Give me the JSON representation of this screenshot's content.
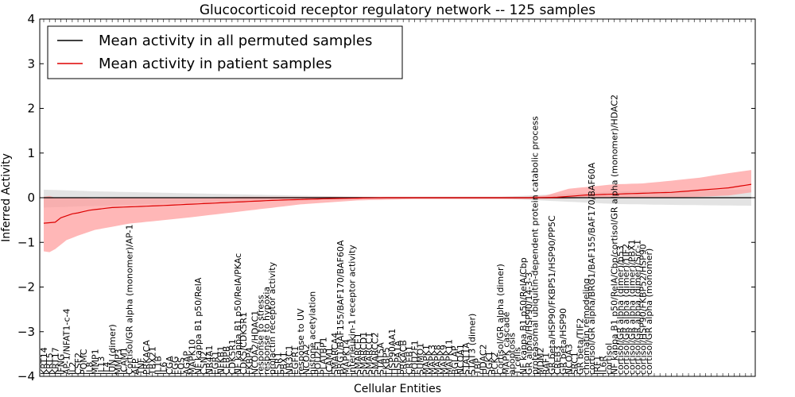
{
  "chart_data": {
    "type": "line",
    "title": "Glucocorticoid receptor regulatory network -- 125 samples",
    "xlabel": "Cellular Entities",
    "ylabel": "Inferred Activity",
    "ylim": [
      -4,
      4
    ],
    "yticks": [
      "−4",
      "−3",
      "−2",
      "−1",
      "0",
      "1",
      "2",
      "3",
      "4"
    ],
    "grid": false,
    "legend_position": "top-left",
    "n_entities": 125,
    "zero_line_style": "dotted",
    "colors": {
      "permuted": "#000000",
      "patient": "#dd0000",
      "permuted_band": "#d9d9d9",
      "patient_band": "#ff9999"
    },
    "series": [
      {
        "name": "Mean activity in all permuted samples",
        "color": "#000000",
        "mean": 0.0,
        "band": [
          [
            0,
            -0.22,
            0.18
          ],
          [
            10,
            -0.18,
            0.14
          ],
          [
            25,
            -0.12,
            0.1
          ],
          [
            40,
            -0.06,
            0.06
          ],
          [
            55,
            -0.02,
            0.02
          ],
          [
            80,
            -0.02,
            0.02
          ],
          [
            92,
            -0.09,
            0.09
          ],
          [
            100,
            -0.14,
            0.14
          ],
          [
            110,
            -0.16,
            0.16
          ],
          [
            124,
            -0.18,
            0.18
          ]
        ]
      },
      {
        "name": "Mean activity in patient samples",
        "color": "#dd0000",
        "mean": [
          [
            0,
            -0.57
          ],
          [
            2,
            -0.55
          ],
          [
            3,
            -0.45
          ],
          [
            5,
            -0.36
          ],
          [
            6,
            -0.34
          ],
          [
            8,
            -0.28
          ],
          [
            12,
            -0.22
          ],
          [
            20,
            -0.18
          ],
          [
            30,
            -0.12
          ],
          [
            40,
            -0.06
          ],
          [
            50,
            -0.02
          ],
          [
            60,
            0.0
          ],
          [
            85,
            0.0
          ],
          [
            90,
            0.01
          ],
          [
            95,
            0.06
          ],
          [
            100,
            0.08
          ],
          [
            110,
            0.12
          ],
          [
            115,
            0.17
          ],
          [
            120,
            0.22
          ],
          [
            124,
            0.3
          ]
        ],
        "band": [
          [
            0,
            -1.2,
            0.02
          ],
          [
            1,
            -1.22,
            0.04
          ],
          [
            2,
            -1.15,
            0.0
          ],
          [
            4,
            -0.95,
            0.0
          ],
          [
            6,
            -0.85,
            0.0
          ],
          [
            9,
            -0.72,
            -0.02
          ],
          [
            15,
            -0.58,
            0.0
          ],
          [
            25,
            -0.45,
            0.0
          ],
          [
            35,
            -0.3,
            0.02
          ],
          [
            45,
            -0.15,
            0.02
          ],
          [
            55,
            -0.06,
            0.02
          ],
          [
            65,
            -0.03,
            0.02
          ],
          [
            75,
            -0.03,
            0.02
          ],
          [
            85,
            -0.03,
            0.02
          ],
          [
            88,
            -0.03,
            0.05
          ],
          [
            92,
            -0.02,
            0.2
          ],
          [
            96,
            0.0,
            0.25
          ],
          [
            100,
            0.0,
            0.3
          ],
          [
            105,
            0.0,
            0.32
          ],
          [
            110,
            0.0,
            0.38
          ],
          [
            115,
            0.02,
            0.45
          ],
          [
            120,
            0.05,
            0.55
          ],
          [
            124,
            0.12,
            0.62
          ]
        ]
      }
    ],
    "entity_labels": [
      {
        "x": 0,
        "text": "KRT14"
      },
      {
        "x": 1,
        "text": "KRT5"
      },
      {
        "x": 2,
        "text": "KRT17"
      },
      {
        "x": 3,
        "text": "IFNG"
      },
      {
        "x": 4,
        "text": "AP-1/NFAT1-c-4"
      },
      {
        "x": 5,
        "text": "IL2"
      },
      {
        "x": 6,
        "text": "CSF2"
      },
      {
        "x": 7,
        "text": "POMC"
      },
      {
        "x": 8,
        "text": "IL8"
      },
      {
        "x": 9,
        "text": "MMP1"
      },
      {
        "x": 10,
        "text": "IL13"
      },
      {
        "x": 11,
        "text": "IL4"
      },
      {
        "x": 12,
        "text": "JUN (dimer)"
      },
      {
        "x": 13,
        "text": "MMP3"
      },
      {
        "x": 14,
        "text": "ICAM1"
      },
      {
        "x": 15,
        "text": "Cortisol/GR alpha (monomer)/AP-1"
      },
      {
        "x": 16,
        "text": "AFP"
      },
      {
        "x": 17,
        "text": "TNF"
      },
      {
        "x": 18,
        "text": "PRKACA"
      },
      {
        "x": 19,
        "text": "TBX21"
      },
      {
        "x": 20,
        "text": "IL1B"
      },
      {
        "x": 21,
        "text": "IL6"
      },
      {
        "x": 22,
        "text": "CGA"
      },
      {
        "x": 23,
        "text": "FGG"
      },
      {
        "x": 24,
        "text": "FOS"
      },
      {
        "x": 25,
        "text": "AGAP"
      },
      {
        "x": 26,
        "text": "MAPK10"
      },
      {
        "x": 27,
        "text": "NF kappa B1 p50/RelA"
      },
      {
        "x": 28,
        "text": "CSN2"
      },
      {
        "x": 29,
        "text": "NR4A1"
      },
      {
        "x": 30,
        "text": "EGR1"
      },
      {
        "x": 31,
        "text": "NFKB1"
      },
      {
        "x": 32,
        "text": "CEBPB"
      },
      {
        "x": 33,
        "text": "CDK5R1"
      },
      {
        "x": 34,
        "text": "NF kappa B1 p50/RelA/PKAc"
      },
      {
        "x": 35,
        "text": "CDK5/CDK5R1"
      },
      {
        "x": 36,
        "text": "FKBP4"
      },
      {
        "x": 37,
        "text": "NCOA2/HDAC1"
      },
      {
        "x": 38,
        "text": "response to stress"
      },
      {
        "x": 39,
        "text": "response to hypoxia"
      },
      {
        "x": 40,
        "text": "prolactin receptor activity"
      },
      {
        "x": 41,
        "text": "ESR1"
      },
      {
        "x": 42,
        "text": "PBX1"
      },
      {
        "x": 43,
        "text": "NR3C1"
      },
      {
        "x": 44,
        "text": "EGFR1"
      },
      {
        "x": 45,
        "text": "response to UV"
      },
      {
        "x": 46,
        "text": "NCOA2"
      },
      {
        "x": 47,
        "text": "histone acetylation"
      },
      {
        "x": 48,
        "text": "POU2F1"
      },
      {
        "x": 49,
        "text": "PLATBP1"
      },
      {
        "x": 50,
        "text": "ICAM1"
      },
      {
        "x": 51,
        "text": "SMARCA4"
      },
      {
        "x": 52,
        "text": "BRG1/BAF155/BAF170/BAF60A"
      },
      {
        "x": 53,
        "text": "MAPK14"
      },
      {
        "x": 54,
        "text": "interleukin-1 receptor activity"
      },
      {
        "x": 55,
        "text": "SMARCE1"
      },
      {
        "x": 56,
        "text": "SMARCD1"
      },
      {
        "x": 57,
        "text": "SMARCC1"
      },
      {
        "x": 58,
        "text": "SMARCC2"
      },
      {
        "x": 59,
        "text": "STAT5A"
      },
      {
        "x": 60,
        "text": "FKBP5"
      },
      {
        "x": 61,
        "text": "HSP90AA1"
      },
      {
        "x": 62,
        "text": "HSPA1A"
      },
      {
        "x": 63,
        "text": "PRKACB"
      },
      {
        "x": 64,
        "text": "CREB1"
      },
      {
        "x": 65,
        "text": "POU2F1"
      },
      {
        "x": 66,
        "text": "SUMO1"
      },
      {
        "x": 67,
        "text": "MAPK1"
      },
      {
        "x": 68,
        "text": "MAPK3"
      },
      {
        "x": 69,
        "text": "MAPK8"
      },
      {
        "x": 70,
        "text": "MAPK9"
      },
      {
        "x": 71,
        "text": "MAPK11"
      },
      {
        "x": 72,
        "text": "BGLAP"
      },
      {
        "x": 73,
        "text": "NCOA1"
      },
      {
        "x": 74,
        "text": "STAT1A"
      },
      {
        "x": 75,
        "text": "STAT3 (dimer)"
      },
      {
        "x": 76,
        "text": "TBP"
      },
      {
        "x": 77,
        "text": "HDAC2"
      },
      {
        "x": 78,
        "text": "SGK1"
      },
      {
        "x": 79,
        "text": "PCK2"
      },
      {
        "x": 80,
        "text": "Cortisol/GR alpha (dimer)"
      },
      {
        "x": 81,
        "text": "MAPK cascade"
      },
      {
        "x": 82,
        "text": "apoptosis"
      },
      {
        "x": 83,
        "text": "T cells"
      },
      {
        "x": 84,
        "text": "NF kappa B1 p50/RelA/Cbp"
      },
      {
        "x": 85,
        "text": "GR alpha/HSP90/14-3-3"
      },
      {
        "x": 86,
        "text": "proteasomal ubiquitin-dependent protein catabolic process"
      },
      {
        "x": 87,
        "text": "MDM2"
      },
      {
        "x": 88,
        "text": "RAF1"
      },
      {
        "x": 89,
        "text": "GR beta/HSP90/FKBP51/HSP90/PP5C"
      },
      {
        "x": 90,
        "text": "CREB3"
      },
      {
        "x": 91,
        "text": "GR beta/HSP90"
      },
      {
        "x": 92,
        "text": "NCOA3"
      },
      {
        "x": 93,
        "text": "SRC1"
      },
      {
        "x": 94,
        "text": "GR beta/TIF2"
      },
      {
        "x": 95,
        "text": "chromatin remodeling"
      },
      {
        "x": 96,
        "text": "cortisol/GR alpha/BRG1/BAF155/BAF170/BAF60A"
      },
      {
        "x": 97,
        "text": "IRF1"
      },
      {
        "x": 98,
        "text": "IL6R"
      },
      {
        "x": 99,
        "text": "cortisol"
      },
      {
        "x": 100,
        "text": "NF kappa B1 p50/RelA/Cbp/cortisol/GR alpha (monomer)/HDAC2"
      },
      {
        "x": 101,
        "text": "cortisol/GR alpha (dimer)/p53"
      },
      {
        "x": 102,
        "text": "cortisol/GR alpha (dimer)/TIF2"
      },
      {
        "x": 103,
        "text": "cortisol/GR alpha (dimer)/PBX1"
      },
      {
        "x": 104,
        "text": "cortisol/GR alpha (dimer)/Src-1"
      },
      {
        "x": 105,
        "text": "cortisol/HSP90/FKBP52/HSP90"
      },
      {
        "x": 106,
        "text": "cortisol/GR alpha (monomer)"
      }
    ]
  },
  "legend": {
    "permuted_label": "Mean activity in all permuted samples",
    "patient_label": "Mean activity in patient samples"
  }
}
